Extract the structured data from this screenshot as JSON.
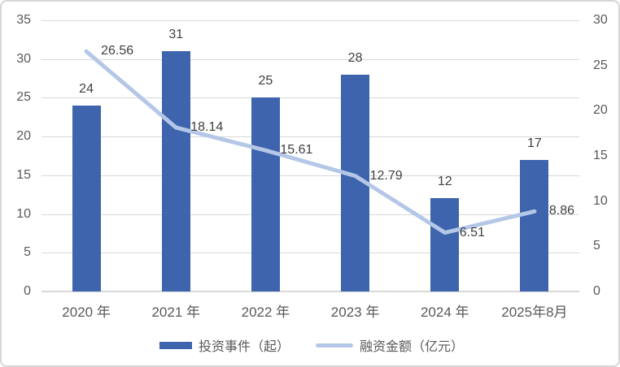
{
  "chart_data": {
    "type": "bar+line combo",
    "title": "",
    "categories": [
      "2020 年",
      "2021 年",
      "2022 年",
      "2023 年",
      "2024 年",
      "2025年8月"
    ],
    "series": [
      {
        "name": "投资事件（起）",
        "type": "bar",
        "axis": "left",
        "color": "#3d64ac",
        "values": [
          24,
          31,
          25,
          28,
          12,
          17
        ],
        "labels": [
          "24",
          "31",
          "25",
          "28",
          "12",
          "17"
        ]
      },
      {
        "name": "融资金额（亿元）",
        "type": "line",
        "axis": "right",
        "color": "#b4c7e7",
        "values": [
          26.56,
          18.14,
          15.61,
          12.79,
          6.51,
          8.86
        ],
        "labels": [
          "26.56",
          "18.14",
          "15.61",
          "12.79",
          "6.51",
          "8.86"
        ]
      }
    ],
    "left_axis": {
      "min": 0,
      "max": 35,
      "step": 5,
      "ticks": [
        "0",
        "5",
        "10",
        "15",
        "20",
        "25",
        "30",
        "35"
      ]
    },
    "right_axis": {
      "min": 0,
      "max": 30,
      "step": 5,
      "ticks": [
        "0",
        "5",
        "10",
        "15",
        "20",
        "25",
        "30"
      ]
    },
    "grid": "horizontal",
    "grid_color": "#d9d9d9",
    "text_color": "#595959",
    "label_color": "#404040",
    "legend_position": "bottom-center"
  }
}
